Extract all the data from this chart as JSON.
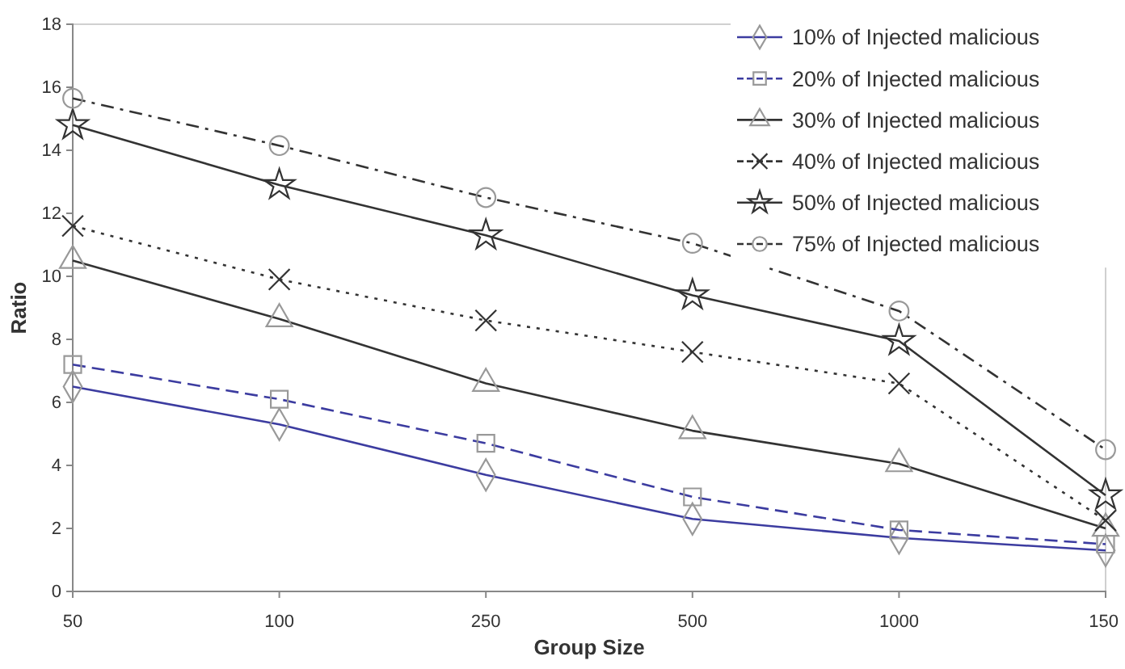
{
  "chart_data": {
    "type": "line",
    "xlabel": "Group Size",
    "ylabel": "Ratio",
    "categories": [
      "50",
      "100",
      "250",
      "500",
      "1000",
      "150"
    ],
    "ylim": [
      0,
      18
    ],
    "yticks": [
      0,
      2,
      4,
      6,
      8,
      10,
      12,
      14,
      16,
      18
    ],
    "grid": false,
    "legend": "top right",
    "series": [
      {
        "name": "10% of Injected malicious",
        "color": "#3c3ca0",
        "marker": "diamond",
        "line_style": "solid",
        "values": [
          6.5,
          5.3,
          3.7,
          2.3,
          1.7,
          1.3
        ]
      },
      {
        "name": "20% of Injected malicious",
        "color": "#3c3ca0",
        "marker": "square",
        "line_style": "dashed",
        "values": [
          7.2,
          6.1,
          4.7,
          3.0,
          1.95,
          1.5
        ]
      },
      {
        "name": "30% of Injected malicious",
        "color": "#333333",
        "marker": "triangle",
        "line_style": "solid",
        "values": [
          10.5,
          8.65,
          6.6,
          5.1,
          4.05,
          2.0
        ]
      },
      {
        "name": "40% of Injected malicious",
        "color": "#333333",
        "marker": "cross",
        "line_style": "dotted",
        "values": [
          11.6,
          9.9,
          8.6,
          7.6,
          6.6,
          2.25
        ]
      },
      {
        "name": "50% of Injected malicious",
        "color": "#333333",
        "marker": "star",
        "line_style": "solid",
        "values": [
          14.8,
          12.9,
          11.3,
          9.4,
          7.95,
          3.05
        ]
      },
      {
        "name": "75% of Injected malicious",
        "color": "#333333",
        "marker": "circle",
        "line_style": "dashdot",
        "values": [
          15.65,
          14.15,
          12.5,
          11.05,
          8.9,
          4.5
        ]
      }
    ]
  }
}
